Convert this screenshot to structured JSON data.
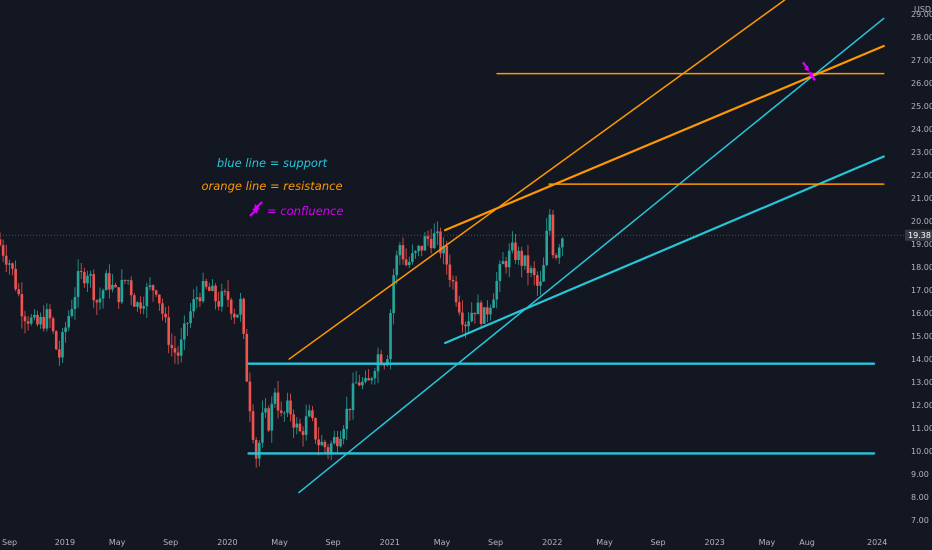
{
  "chart_data": {
    "type": "candlestick",
    "currency": "USD",
    "last_price": "19.38",
    "y_ticks": [
      7,
      8,
      9,
      10,
      11,
      12,
      13,
      14,
      15,
      16,
      17,
      18,
      19,
      20,
      21,
      22,
      23,
      24,
      25,
      26,
      27,
      28,
      29
    ],
    "x_ticks": [
      {
        "label": "Sep",
        "t": 2018.667
      },
      {
        "label": "2019",
        "t": 2019.0
      },
      {
        "label": "May",
        "t": 2019.333
      },
      {
        "label": "Sep",
        "t": 2019.667
      },
      {
        "label": "2020",
        "t": 2020.0
      },
      {
        "label": "May",
        "t": 2020.333
      },
      {
        "label": "Sep",
        "t": 2020.667
      },
      {
        "label": "2021",
        "t": 2021.0
      },
      {
        "label": "May",
        "t": 2021.333
      },
      {
        "label": "Sep",
        "t": 2021.667
      },
      {
        "label": "2022",
        "t": 2022.0
      },
      {
        "label": "May",
        "t": 2022.333
      },
      {
        "label": "Sep",
        "t": 2022.667
      },
      {
        "label": "2023",
        "t": 2023.0
      },
      {
        "label": "May",
        "t": 2023.333
      },
      {
        "label": "Aug",
        "t": 2023.583
      },
      {
        "label": "2024",
        "t": 2024.0
      }
    ],
    "x_range": [
      2018.62,
      2024.0
    ],
    "y_range": [
      6.4,
      29.6
    ],
    "price_path": [
      [
        2018.62,
        19.2
      ],
      [
        2018.7,
        18.2
      ],
      [
        2018.78,
        16.1
      ],
      [
        2018.86,
        15.4
      ],
      [
        2018.94,
        15.9
      ],
      [
        2019.0,
        14.0
      ],
      [
        2019.05,
        15.6
      ],
      [
        2019.12,
        17.4
      ],
      [
        2019.18,
        17.9
      ],
      [
        2019.24,
        16.4
      ],
      [
        2019.3,
        17.5
      ],
      [
        2019.36,
        16.7
      ],
      [
        2019.42,
        17.6
      ],
      [
        2019.48,
        16.3
      ],
      [
        2019.54,
        16.9
      ],
      [
        2019.6,
        17.2
      ],
      [
        2019.66,
        15.4
      ],
      [
        2019.7,
        14.4
      ],
      [
        2019.74,
        14.2
      ],
      [
        2019.8,
        15.8
      ],
      [
        2019.86,
        16.9
      ],
      [
        2019.92,
        17.0
      ],
      [
        2019.98,
        16.5
      ],
      [
        2020.04,
        16.7
      ],
      [
        2020.09,
        15.9
      ],
      [
        2020.12,
        16.4
      ],
      [
        2020.15,
        13.8
      ],
      [
        2020.19,
        11.3
      ],
      [
        2020.22,
        9.6
      ],
      [
        2020.26,
        11.6
      ],
      [
        2020.3,
        11.2
      ],
      [
        2020.33,
        12.8
      ],
      [
        2020.37,
        11.4
      ],
      [
        2020.42,
        11.9
      ],
      [
        2020.48,
        10.7
      ],
      [
        2020.54,
        11.5
      ],
      [
        2020.6,
        10.4
      ],
      [
        2020.66,
        10.1
      ],
      [
        2020.72,
        10.7
      ],
      [
        2020.78,
        11.8
      ],
      [
        2020.84,
        13.1
      ],
      [
        2020.9,
        12.7
      ],
      [
        2020.96,
        14.2
      ],
      [
        2021.02,
        14.0
      ],
      [
        2021.06,
        17.6
      ],
      [
        2021.1,
        19.0
      ],
      [
        2021.14,
        18.1
      ],
      [
        2021.2,
        18.5
      ],
      [
        2021.26,
        19.2
      ],
      [
        2021.32,
        19.3
      ],
      [
        2021.38,
        18.4
      ],
      [
        2021.44,
        17.0
      ],
      [
        2021.5,
        15.6
      ],
      [
        2021.56,
        16.3
      ],
      [
        2021.62,
        15.8
      ],
      [
        2021.68,
        17.0
      ],
      [
        2021.74,
        18.2
      ],
      [
        2021.8,
        18.7
      ],
      [
        2021.86,
        18.2
      ],
      [
        2021.92,
        17.6
      ],
      [
        2021.96,
        16.9
      ],
      [
        2021.99,
        18.1
      ],
      [
        2022.02,
        20.6
      ],
      [
        2022.05,
        18.3
      ],
      [
        2022.09,
        19.38
      ]
    ],
    "support_lines": [
      {
        "from": [
          2020.15,
          13.8
        ],
        "to": [
          2024.0,
          13.8
        ],
        "width": 2.4
      },
      {
        "from": [
          2020.15,
          9.9
        ],
        "to": [
          2024.0,
          9.9
        ],
        "width": 2.4
      },
      {
        "from": [
          2020.46,
          8.2
        ],
        "to": [
          2024.06,
          28.8
        ],
        "width": 1.5
      },
      {
        "from": [
          2021.36,
          14.7
        ],
        "to": [
          2024.06,
          22.8
        ],
        "width": 2.2
      }
    ],
    "resistance_lines": [
      {
        "from": [
          2020.4,
          14.0
        ],
        "to": [
          2023.45,
          29.6
        ],
        "width": 1.5
      },
      {
        "from": [
          2021.36,
          19.6
        ],
        "to": [
          2024.06,
          27.6
        ],
        "width": 2.2
      },
      {
        "from": [
          2022.0,
          21.6
        ],
        "to": [
          2024.06,
          21.6
        ],
        "width": 1.5
      },
      {
        "from": [
          2021.68,
          26.4
        ],
        "to": [
          2024.06,
          26.4
        ],
        "width": 1.5
      }
    ],
    "confluence_point": [
      2023.6,
      26.5
    ]
  },
  "annotations": {
    "support": "blue line = support",
    "resistance": "orange line = resistance",
    "confluence": "= confluence"
  },
  "colors": {
    "background": "#131722",
    "support": "#26c6da",
    "resistance": "#ff9800",
    "confluence": "#d500f9",
    "up": "#26a69a",
    "down": "#ef5350",
    "axis_text": "#b2b5be",
    "price_label_bg": "#363a45"
  }
}
